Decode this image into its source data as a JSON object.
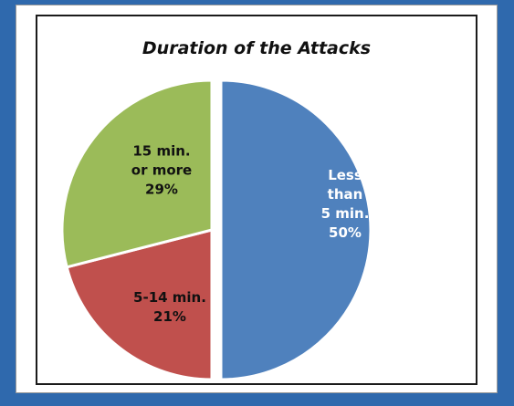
{
  "chart_data": {
    "type": "pie",
    "title": "Duration of the Attacks",
    "slices": [
      {
        "label_lines": [
          "Less",
          "than",
          "5 min."
        ],
        "value": 50,
        "value_text": "50%",
        "color": "#4f81bd",
        "text_color": "#ffffff"
      },
      {
        "label_lines": [
          "5-14 min."
        ],
        "value": 21,
        "value_text": "21%",
        "color": "#c0504d",
        "text_color": "#111111"
      },
      {
        "label_lines": [
          "15 min.",
          "or more"
        ],
        "value": 29,
        "value_text": "29%",
        "color": "#9bbb59",
        "text_color": "#111111"
      }
    ],
    "exploded_slice": 0,
    "legend": "none"
  }
}
